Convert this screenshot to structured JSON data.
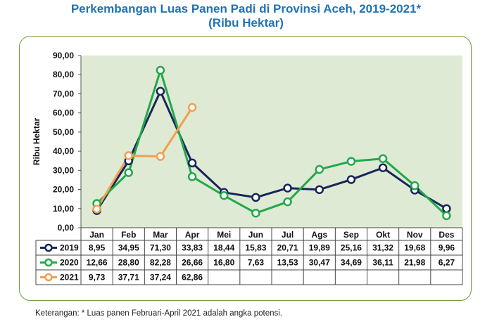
{
  "title": "Perkembangan Luas Panen Padi di Provinsi Aceh, 2019-2021*",
  "subtitle": "(Ribu Hektar)",
  "note": "Keterangan: * Luas panen Februari-April 2021 adalah angka potensi.",
  "chart_data": {
    "type": "line",
    "title": "Perkembangan Luas Panen Padi di Provinsi Aceh, 2019-2021*",
    "subtitle": "(Ribu Hektar)",
    "ylabel": "Ribu Hektar",
    "xlabel": "",
    "ylim": [
      0,
      90
    ],
    "yticks": [
      "0,00",
      "10,00",
      "20,00",
      "30,00",
      "40,00",
      "50,00",
      "60,00",
      "70,00",
      "80,00",
      "90,00"
    ],
    "grid": false,
    "categories": [
      "Jan",
      "Feb",
      "Mar",
      "Apr",
      "Mei",
      "Jun",
      "Jul",
      "Ags",
      "Sep",
      "Okt",
      "Nov",
      "Des"
    ],
    "series": [
      {
        "name": "2019",
        "color": "#17255a",
        "values": [
          8.95,
          34.95,
          71.3,
          33.83,
          18.44,
          15.83,
          20.71,
          19.89,
          25.16,
          31.32,
          19.68,
          9.96
        ],
        "labels": [
          "8,95",
          "34,95",
          "71,30",
          "33,83",
          "18,44",
          "15,83",
          "20,71",
          "19,89",
          "25,16",
          "31,32",
          "19,68",
          "9,96"
        ]
      },
      {
        "name": "2020",
        "color": "#22a84a",
        "values": [
          12.66,
          28.8,
          82.28,
          26.66,
          16.8,
          7.63,
          13.53,
          30.47,
          34.69,
          36.11,
          21.98,
          6.27
        ],
        "labels": [
          "12,66",
          "28,80",
          "82,28",
          "26,66",
          "16,80",
          "7,63",
          "13,53",
          "30,47",
          "34,69",
          "36,11",
          "21,98",
          "6,27"
        ]
      },
      {
        "name": "2021",
        "color": "#f0a050",
        "values": [
          9.73,
          37.71,
          37.24,
          62.86,
          null,
          null,
          null,
          null,
          null,
          null,
          null,
          null
        ],
        "labels": [
          "9,73",
          "37,71",
          "37,24",
          "62,86",
          "",
          "",
          "",
          "",
          "",
          "",
          "",
          ""
        ]
      }
    ]
  }
}
